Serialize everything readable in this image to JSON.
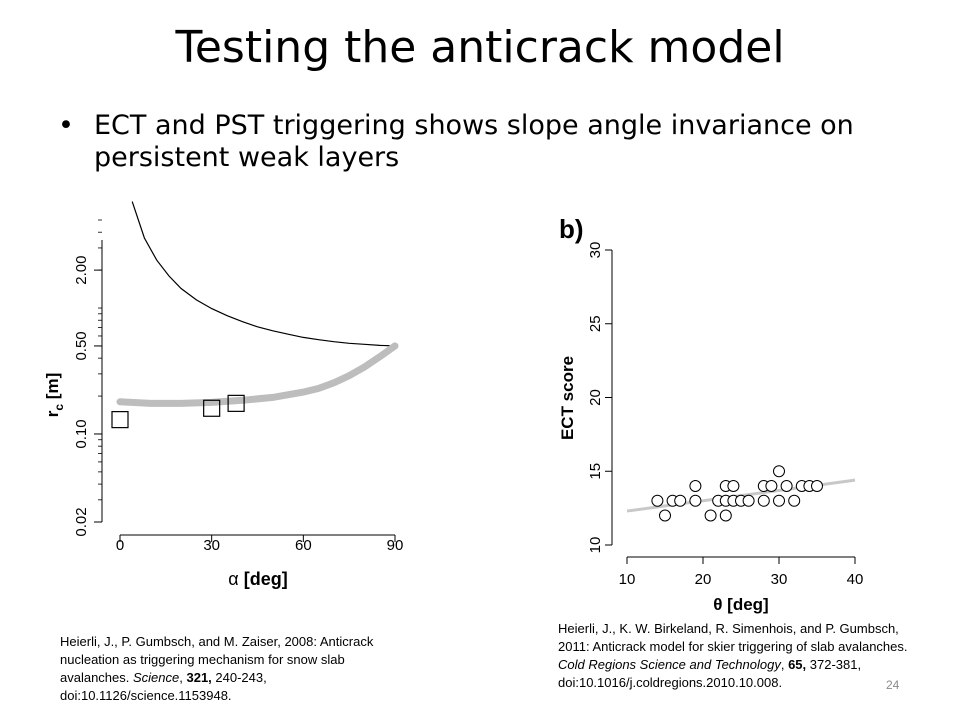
{
  "slide": {
    "title": "Testing the anticrack model",
    "bullet": "ECT and PST triggering shows slope angle invariance on persistent weak layers",
    "page_number": "24"
  },
  "citations": {
    "a": {
      "before": "Heierli, J., P. Gumbsch, and M. Zaiser, 2008: Anticrack nucleation as triggering mechanism for snow slab avalanches. ",
      "journal": "Science",
      "sep1": ", ",
      "volume": "321,",
      "after": " 240-243, doi:10.1126/science.1153948."
    },
    "b": {
      "before": "Heierli, J., K. W. Birkeland, R. Simenhois, and P. Gumbsch, 2011: Anticrack model for skier triggering of slab avalanches. ",
      "journal": "Cold Regions Science and Technology",
      "sep1": ", ",
      "volume": "65,",
      "after": " 372-381, doi:10.1016/j.coldregions.2010.10.008."
    }
  },
  "chart_data": [
    {
      "type": "line",
      "panel_label": "",
      "xlabel_symbol": "α",
      "xlabel_unit": "[deg]",
      "ylabel_main": "r",
      "ylabel_sub": "c",
      "ylabel_unit": "[m]",
      "xlim": [
        0,
        90
      ],
      "ylim": [
        0.02,
        5
      ],
      "yscale": "log",
      "xticks": [
        0,
        30,
        60,
        90
      ],
      "yticks": [
        0.02,
        0.1,
        0.5,
        2.0
      ],
      "ytick_labels": [
        "0.02",
        "0.10",
        "0.50",
        "2.00"
      ],
      "series": [
        {
          "style": "thin-black",
          "x": [
            4,
            8,
            12,
            16,
            20,
            25,
            30,
            35,
            40,
            45,
            50,
            55,
            60,
            65,
            70,
            75,
            80,
            85,
            90
          ],
          "y": [
            7.0,
            3.6,
            2.4,
            1.8,
            1.43,
            1.16,
            0.99,
            0.87,
            0.78,
            0.71,
            0.66,
            0.62,
            0.585,
            0.56,
            0.54,
            0.525,
            0.515,
            0.505,
            0.5
          ]
        },
        {
          "style": "thick-gray",
          "x": [
            0,
            10,
            20,
            30,
            40,
            50,
            60,
            65,
            70,
            75,
            80,
            85,
            90
          ],
          "y": [
            0.18,
            0.175,
            0.175,
            0.178,
            0.185,
            0.195,
            0.215,
            0.23,
            0.255,
            0.29,
            0.34,
            0.41,
            0.5
          ]
        }
      ],
      "points": [
        {
          "x": 0,
          "y": 0.13
        },
        {
          "x": 30,
          "y": 0.16
        },
        {
          "x": 38,
          "y": 0.175
        }
      ]
    },
    {
      "type": "scatter",
      "panel_label": "b)",
      "xlabel": "θ [deg]",
      "ylabel": "ECT score",
      "xlim": [
        10,
        40
      ],
      "ylim": [
        10,
        30
      ],
      "xticks": [
        10,
        20,
        30,
        40
      ],
      "yticks": [
        10,
        15,
        20,
        25,
        30
      ],
      "points": [
        {
          "x": 14,
          "y": 13
        },
        {
          "x": 15,
          "y": 12
        },
        {
          "x": 16,
          "y": 13
        },
        {
          "x": 17,
          "y": 13
        },
        {
          "x": 19,
          "y": 14
        },
        {
          "x": 19,
          "y": 13
        },
        {
          "x": 21,
          "y": 12
        },
        {
          "x": 22,
          "y": 13
        },
        {
          "x": 23,
          "y": 14
        },
        {
          "x": 23,
          "y": 12
        },
        {
          "x": 23,
          "y": 13
        },
        {
          "x": 24,
          "y": 14
        },
        {
          "x": 24,
          "y": 13
        },
        {
          "x": 25,
          "y": 13
        },
        {
          "x": 26,
          "y": 13
        },
        {
          "x": 28,
          "y": 14
        },
        {
          "x": 28,
          "y": 13
        },
        {
          "x": 29,
          "y": 14
        },
        {
          "x": 30,
          "y": 15
        },
        {
          "x": 30,
          "y": 13
        },
        {
          "x": 31,
          "y": 14
        },
        {
          "x": 32,
          "y": 13
        },
        {
          "x": 33,
          "y": 14
        },
        {
          "x": 34,
          "y": 14
        },
        {
          "x": 35,
          "y": 14
        }
      ],
      "trend": {
        "x": [
          10,
          40
        ],
        "y": [
          12.3,
          14.4
        ]
      }
    }
  ]
}
